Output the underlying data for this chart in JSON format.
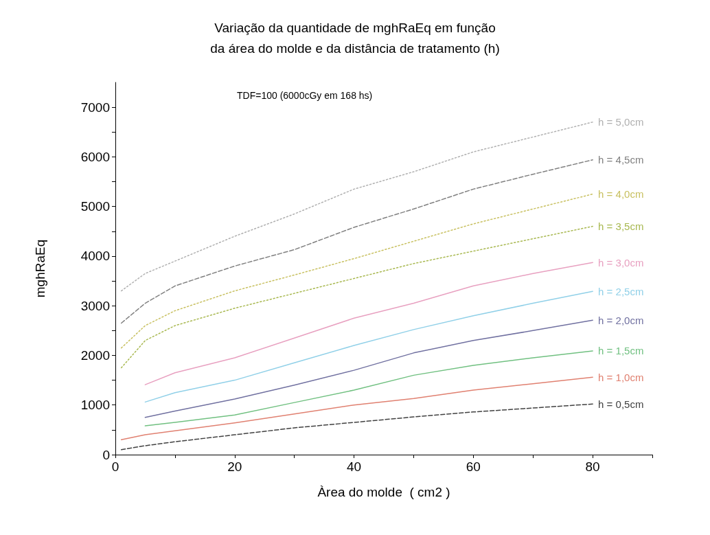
{
  "chart_data": {
    "type": "line",
    "title": "Variação da quantidade de mghRaEq em função\nda área do molde e da distância de tratamento (h)",
    "xlabel": "Àrea do molde  ( cm2 )",
    "ylabel": "mghRaEq",
    "annotations": [
      "TDF=100 (6000cGy em 168 hs)"
    ],
    "xlim": [
      0,
      90
    ],
    "xticks": [
      0,
      {
        "value": 10,
        "label": null
      },
      20,
      {
        "value": 30,
        "label": null
      },
      40,
      {
        "value": 50,
        "label": null
      },
      60,
      {
        "value": 70,
        "label": null
      },
      80,
      {
        "value": 90,
        "label": null
      }
    ],
    "ylim": [
      0,
      7500
    ],
    "yticks": [
      0,
      {
        "value": 500,
        "label": null
      },
      1000,
      {
        "value": 1500,
        "label": null
      },
      2000,
      {
        "value": 2500,
        "label": null
      },
      3000,
      {
        "value": 3500,
        "label": null
      },
      4000,
      {
        "value": 4500,
        "label": null
      },
      5000,
      {
        "value": 5500,
        "label": null
      },
      6000,
      {
        "value": 6500,
        "label": null
      },
      7000
    ],
    "grid": false,
    "legend": false,
    "marker": "none",
    "series": [
      {
        "name": "h = 5,0cm",
        "color": "#b0b0b0",
        "line_style": "dotted",
        "x": [
          1,
          5,
          10,
          20,
          30,
          40,
          50,
          60,
          70,
          80
        ],
        "values": [
          3300,
          3650,
          3900,
          4400,
          4850,
          5350,
          5700,
          6100,
          6400,
          6700
        ]
      },
      {
        "name": "h = 4,5cm",
        "color": "#808080",
        "line_style": "dashed",
        "x": [
          1,
          5,
          10,
          20,
          30,
          40,
          50,
          60,
          70,
          80
        ],
        "values": [
          2650,
          3050,
          3400,
          3800,
          4130,
          4580,
          4950,
          5350,
          5650,
          5940
        ]
      },
      {
        "name": "h = 4,0cm",
        "color": "#c8c060",
        "line_style": "dotted",
        "x": [
          1,
          5,
          10,
          20,
          30,
          40,
          50,
          60,
          70,
          80
        ],
        "values": [
          2150,
          2600,
          2900,
          3300,
          3620,
          3950,
          4300,
          4650,
          4950,
          5250
        ]
      },
      {
        "name": "h = 3,5cm",
        "color": "#a8b850",
        "line_style": "dotted",
        "x": [
          1,
          5,
          10,
          20,
          30,
          40,
          50,
          60,
          70,
          80
        ],
        "values": [
          1750,
          2300,
          2600,
          2950,
          3250,
          3550,
          3850,
          4100,
          4350,
          4600
        ]
      },
      {
        "name": "h = 3,0cm",
        "color": "#e8a0c0",
        "line_style": "solid",
        "x": [
          5,
          10,
          20,
          30,
          40,
          50,
          60,
          70,
          80
        ],
        "values": [
          1410,
          1650,
          1950,
          2350,
          2750,
          3050,
          3400,
          3650,
          3870
        ]
      },
      {
        "name": "h = 2,5cm",
        "color": "#90d0e8",
        "line_style": "solid",
        "x": [
          5,
          10,
          20,
          30,
          40,
          50,
          60,
          70,
          80
        ],
        "values": [
          1060,
          1250,
          1500,
          1850,
          2200,
          2520,
          2800,
          3050,
          3290
        ]
      },
      {
        "name": "h = 2,0cm",
        "color": "#7070a0",
        "line_style": "solid",
        "x": [
          5,
          10,
          20,
          30,
          40,
          50,
          60,
          70,
          80
        ],
        "values": [
          750,
          880,
          1120,
          1400,
          1700,
          2050,
          2300,
          2500,
          2710
        ]
      },
      {
        "name": "h = 1,5cm",
        "color": "#70c080",
        "line_style": "solid",
        "x": [
          5,
          10,
          20,
          30,
          40,
          50,
          60,
          70,
          80
        ],
        "values": [
          580,
          650,
          800,
          1050,
          1300,
          1600,
          1800,
          1950,
          2090
        ]
      },
      {
        "name": "h = 1,0cm",
        "color": "#e08070",
        "line_style": "solid",
        "x": [
          1,
          5,
          10,
          20,
          30,
          40,
          50,
          60,
          70,
          80
        ],
        "values": [
          300,
          400,
          480,
          640,
          820,
          1000,
          1130,
          1300,
          1430,
          1560
        ]
      },
      {
        "name": "h = 0,5cm",
        "color": "#404040",
        "line_style": "dashed",
        "x": [
          1,
          5,
          10,
          20,
          30,
          40,
          50,
          60,
          70,
          80
        ],
        "values": [
          100,
          180,
          260,
          400,
          540,
          650,
          760,
          860,
          940,
          1020
        ]
      }
    ]
  }
}
